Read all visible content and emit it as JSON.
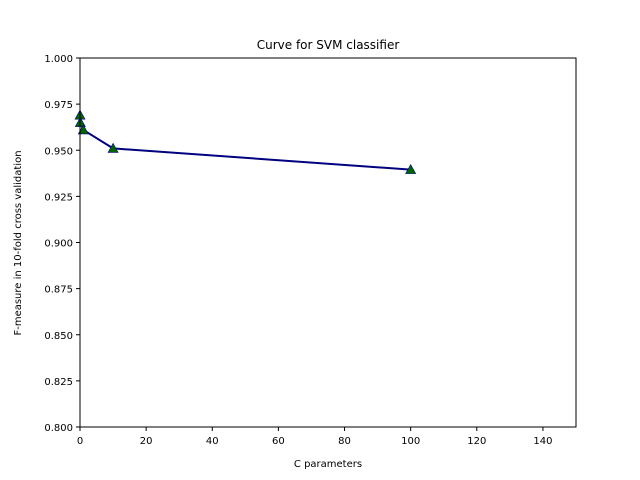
{
  "chart_data": {
    "type": "line",
    "title": "Curve for SVM classifier",
    "xlabel": "C parameters",
    "ylabel": "F-measure in 10-fold cross validation",
    "xlim": [
      0,
      150
    ],
    "ylim": [
      0.8,
      1.0
    ],
    "xticks": [
      "0",
      "20",
      "40",
      "60",
      "80",
      "100",
      "120",
      "140"
    ],
    "yticks": [
      "0.800",
      "0.825",
      "0.850",
      "0.875",
      "0.900",
      "0.925",
      "0.950",
      "0.975",
      "1.000"
    ],
    "grid": false,
    "series": [
      {
        "x": [
          0.01,
          0.1,
          1,
          10,
          100
        ],
        "y": [
          0.969,
          0.965,
          0.961,
          0.951,
          0.9395
        ],
        "line_color": "#000080",
        "marker": "triangle",
        "marker_color": "#006400"
      }
    ]
  }
}
